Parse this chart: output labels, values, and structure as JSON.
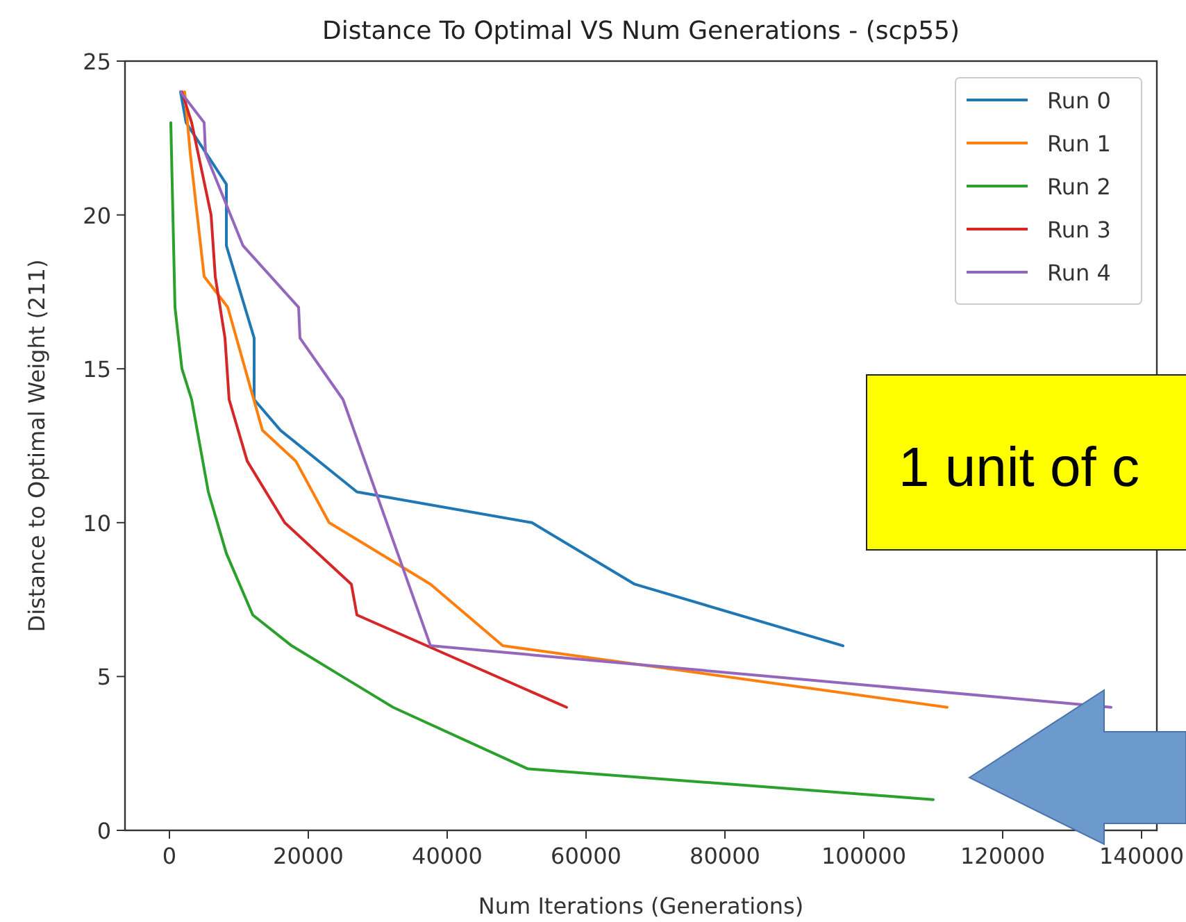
{
  "chart_data": {
    "type": "line",
    "title": "Distance To Optimal VS Num Generations - (scp55)",
    "xlabel": "Num Iterations (Generations)",
    "ylabel": "Distance to Optimal Weight (211)",
    "xlim": [
      -6400,
      142200
    ],
    "ylim": [
      0,
      25
    ],
    "xticks": [
      0,
      20000,
      40000,
      60000,
      80000,
      100000,
      120000,
      140000
    ],
    "yticks": [
      0,
      5,
      10,
      15,
      20,
      25
    ],
    "grid": false,
    "legend": "top right",
    "line_style": "solid",
    "annotations": [
      "1 unit of c"
    ],
    "series": [
      {
        "name": "Run 0",
        "color": "#1f77b4",
        "x": [
          1600,
          2400,
          8200,
          8200,
          12200,
          12200,
          16000,
          27000,
          52200,
          67000,
          97000
        ],
        "values": [
          24,
          23,
          21,
          19,
          16,
          14,
          13,
          11,
          10,
          8,
          6
        ]
      },
      {
        "name": "Run 1",
        "color": "#ff7f0e",
        "x": [
          2200,
          3000,
          5000,
          8400,
          13400,
          18200,
          23000,
          37600,
          48000,
          112000
        ],
        "values": [
          24,
          22,
          18,
          17,
          13,
          12,
          10,
          8,
          6,
          4
        ]
      },
      {
        "name": "Run 2",
        "color": "#2ca02c",
        "x": [
          200,
          800,
          1800,
          3200,
          5600,
          8200,
          12000,
          17600,
          32200,
          51600,
          110000
        ],
        "values": [
          23,
          17,
          15,
          14,
          11,
          9,
          7,
          6,
          4,
          2,
          1
        ]
      },
      {
        "name": "Run 3",
        "color": "#d62728",
        "x": [
          1800,
          3200,
          6000,
          6600,
          8000,
          8600,
          11200,
          16600,
          26200,
          27000,
          57200
        ],
        "values": [
          24,
          23,
          20,
          18,
          16,
          14,
          12,
          10,
          8,
          7,
          4
        ]
      },
      {
        "name": "Run 4",
        "color": "#9467bd",
        "x": [
          1600,
          5000,
          5200,
          10600,
          18600,
          18800,
          25000,
          37600,
          135600
        ],
        "values": [
          24,
          23,
          22,
          19,
          17,
          16,
          14,
          6,
          4
        ]
      }
    ]
  }
}
